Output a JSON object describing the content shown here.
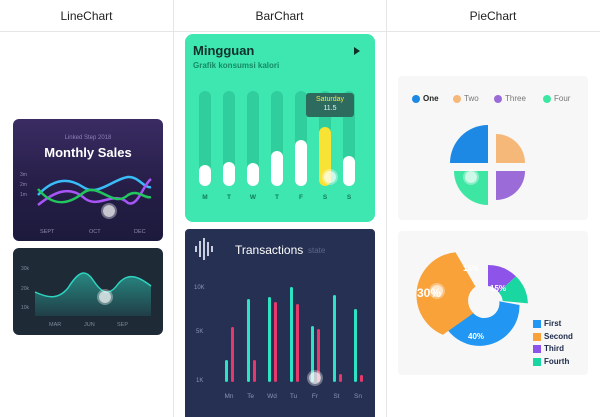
{
  "headers": [
    "LineChart",
    "BarChart",
    "PieChart"
  ],
  "monthly_sales": {
    "subtitle": "Linked Step 2018",
    "title": "Monthly Sales",
    "y_ticks": [
      "3m",
      "2m",
      "1m"
    ],
    "x_ticks": [
      "SEPT",
      "OCT",
      "DEC"
    ],
    "colors": [
      "#38bdf8",
      "#a855f7",
      "#22c55e"
    ]
  },
  "area_card": {
    "y_ticks": [
      "30k",
      "20k",
      "10k"
    ],
    "x_ticks": [
      "MAR",
      "JUN",
      "SEP"
    ],
    "color": "#2dd4bf"
  },
  "mingguan": {
    "title": "Mingguan",
    "subtitle": "Grafik konsumsi kalori",
    "days": [
      "M",
      "T",
      "W",
      "T",
      "F",
      "S",
      "S"
    ],
    "tooltip_day": "Saturday",
    "tooltip_value": "11.5",
    "values": [
      0.22,
      0.25,
      0.24,
      0.37,
      0.48,
      0.62,
      0.32
    ],
    "highlight_index": 5,
    "bg": "#3ee6b0"
  },
  "transactions": {
    "title": "Transactions",
    "subtitle": "state",
    "y_ticks": [
      "10K",
      "5K",
      "1K"
    ],
    "days": [
      "Mn",
      "Te",
      "Wd",
      "Tu",
      "Fr",
      "St",
      "Sn"
    ],
    "series_a": [
      0.22,
      0.83,
      0.85,
      0.95,
      0.56,
      0.87,
      0.73
    ],
    "series_b": [
      0.55,
      0.22,
      0.8,
      0.78,
      0.53,
      0.08,
      0.07
    ],
    "color_a": "#2de3c4",
    "color_b": "#e6396b"
  },
  "pie_card": {
    "legend": [
      "One",
      "Two",
      "Three",
      "Four"
    ],
    "colors": [
      "#1e88e5",
      "#f5b879",
      "#9b6bd8",
      "#3ee6a4"
    ]
  },
  "donut_card": {
    "legend": [
      "First",
      "Second",
      "Third",
      "Fourth"
    ],
    "colors": [
      "#2196f3",
      "#f9a23a",
      "#8e54e9",
      "#1ad7a1"
    ],
    "labels": [
      "40%",
      "30%",
      "15%",
      "15%"
    ]
  }
}
